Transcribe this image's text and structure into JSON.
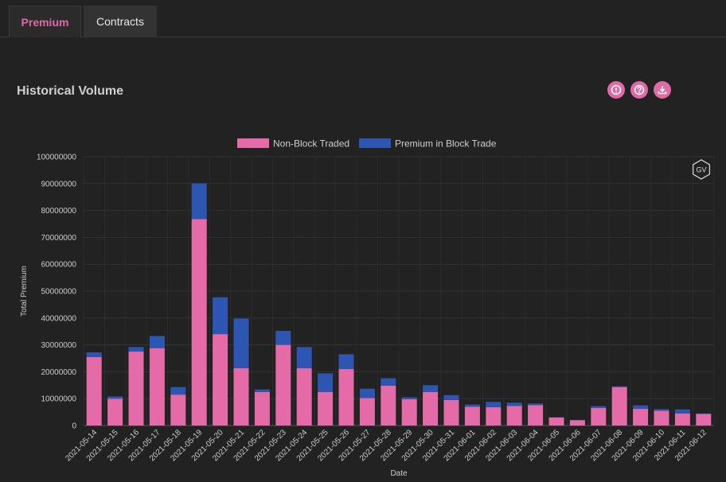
{
  "tabs": [
    {
      "label": "Premium",
      "active": true
    },
    {
      "label": "Contracts",
      "active": false
    }
  ],
  "section_title": "Historical Volume",
  "toolbar_icons": [
    "info-icon",
    "help-icon",
    "download-icon"
  ],
  "watermark": "GV",
  "colors": {
    "accent": "#e06aa5",
    "non_block": "#e56aa8",
    "block": "#2d56b3",
    "background": "#222222"
  },
  "chart_data": {
    "type": "bar",
    "stacked": true,
    "title": "",
    "xlabel": "Date",
    "ylabel": "Total Premium",
    "ylim": [
      0,
      100000000
    ],
    "yticks": [
      0,
      10000000,
      20000000,
      30000000,
      40000000,
      50000000,
      60000000,
      70000000,
      80000000,
      90000000,
      100000000
    ],
    "legend_position": "top-center",
    "grid": true,
    "categories": [
      "2021-05-14",
      "2021-05-15",
      "2021-05-16",
      "2021-05-17",
      "2021-05-18",
      "2021-05-19",
      "2021-05-20",
      "2021-05-21",
      "2021-05-22",
      "2021-05-23",
      "2021-05-24",
      "2021-05-25",
      "2021-05-26",
      "2021-05-27",
      "2021-05-28",
      "2021-05-29",
      "2021-05-30",
      "2021-05-31",
      "2021-06-01",
      "2021-06-02",
      "2021-06-03",
      "2021-06-04",
      "2021-06-05",
      "2021-06-06",
      "2021-06-07",
      "2021-06-08",
      "2021-06-09",
      "2021-06-10",
      "2021-06-11",
      "2021-06-12"
    ],
    "series": [
      {
        "name": "Non-Block Traded",
        "color": "#e56aa8",
        "values": [
          25500000,
          10000000,
          27500000,
          28800000,
          11500000,
          76800000,
          34000000,
          21300000,
          12500000,
          30000000,
          21300000,
          12500000,
          21000000,
          10200000,
          14800000,
          9800000,
          12500000,
          9500000,
          7000000,
          6800000,
          7300000,
          7600000,
          3000000,
          2000000,
          6500000,
          14300000,
          6200000,
          5500000,
          4500000,
          4300000
        ]
      },
      {
        "name": "Premium in Block Trade",
        "color": "#2d56b3",
        "values": [
          1700000,
          800000,
          1700000,
          4500000,
          2800000,
          13300000,
          13700000,
          18500000,
          900000,
          5200000,
          7900000,
          6900000,
          5500000,
          3500000,
          2800000,
          700000,
          2500000,
          1800000,
          800000,
          2000000,
          1200000,
          600000,
          100000,
          100000,
          700000,
          300000,
          1300000,
          600000,
          1500000,
          200000
        ]
      }
    ]
  }
}
